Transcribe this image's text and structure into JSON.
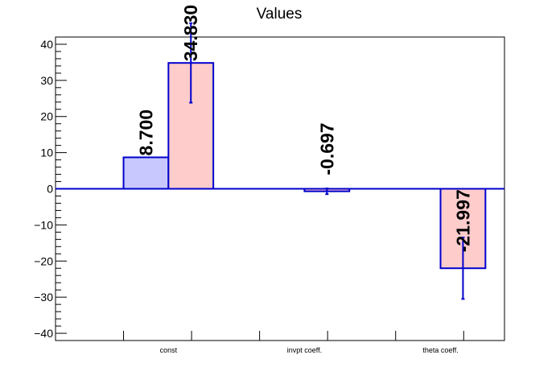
{
  "chart_data": {
    "type": "bar",
    "title": "Values",
    "xlabel": "",
    "ylabel": "",
    "ylim": [
      -42,
      42
    ],
    "yticks": [
      -40,
      -30,
      -20,
      -10,
      0,
      10,
      20,
      30,
      40
    ],
    "ytick_labels": [
      "−40",
      "−30",
      "−20",
      "−10",
      "0",
      "10",
      "20",
      "30",
      "40"
    ],
    "categories": [
      "const",
      "invpt coeff.",
      "theta coeff."
    ],
    "grid": false,
    "series": [
      {
        "color": "#c8c8ff",
        "values": [
          8.7,
          null,
          null
        ],
        "errors": [
          null,
          null,
          null
        ],
        "labels": [
          "8.700",
          null,
          null
        ]
      },
      {
        "color": "#ffcccc",
        "values": [
          34.83,
          -0.697,
          -21.997
        ],
        "errors": [
          11,
          0.8,
          8.5
        ],
        "labels": [
          "34.830",
          "-0.697",
          "-21.997"
        ]
      }
    ],
    "colors": {
      "edge": "#0000cc",
      "axis": "#000000"
    }
  }
}
